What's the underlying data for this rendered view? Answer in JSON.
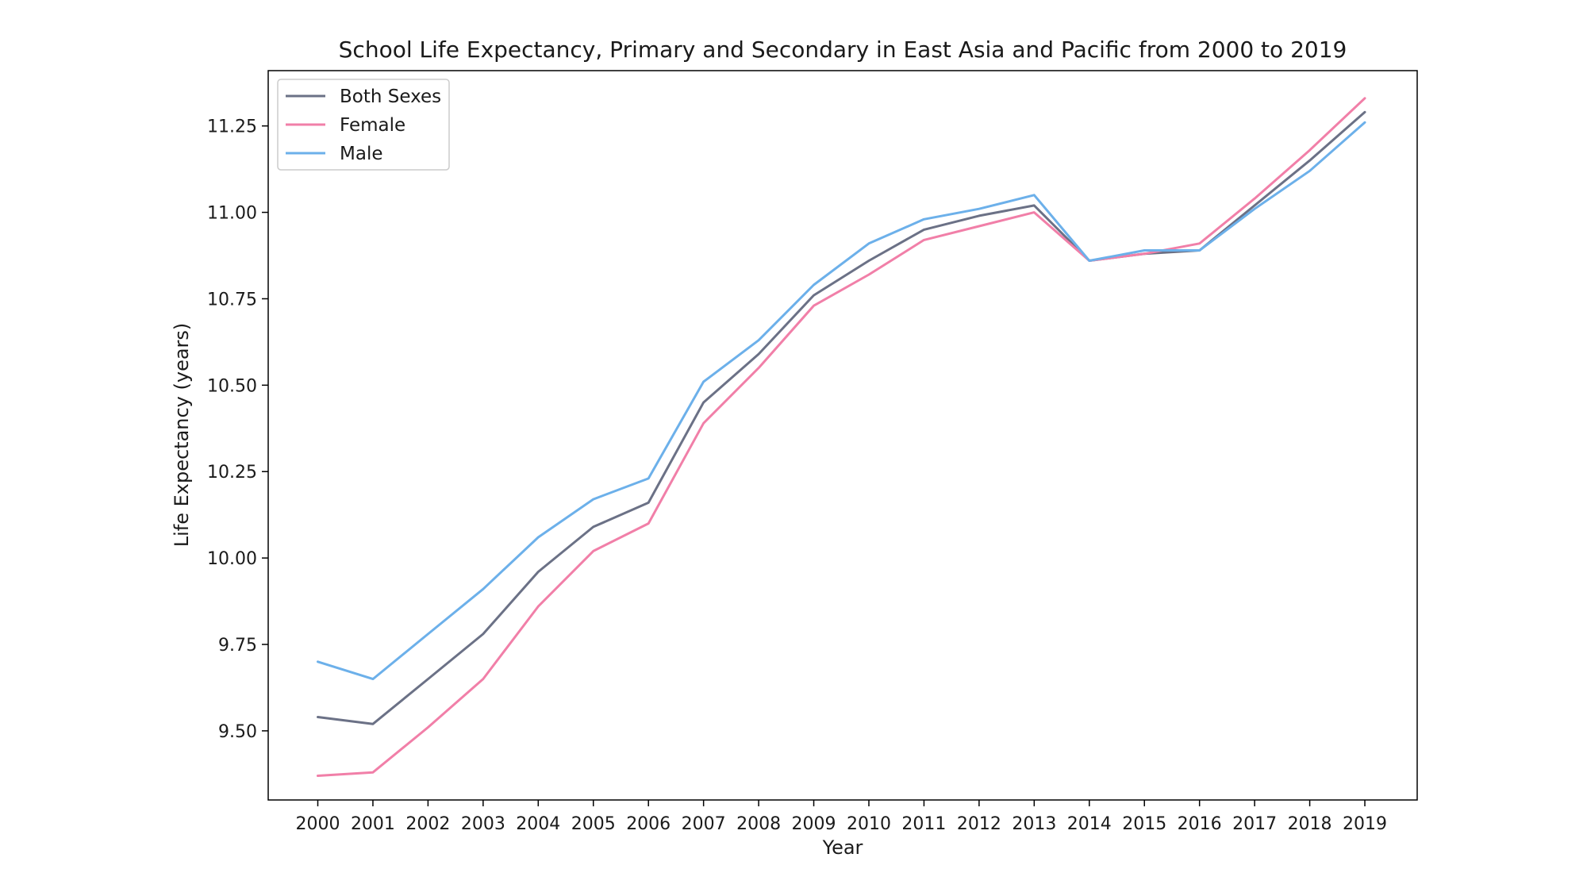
{
  "chart_data": {
    "type": "line",
    "title": "School Life Expectancy, Primary and Secondary in East Asia and Pacific from 2000 to 2019",
    "xlabel": "Year",
    "ylabel": "Life Expectancy (years)",
    "x": [
      2000,
      2001,
      2002,
      2003,
      2004,
      2005,
      2006,
      2007,
      2008,
      2009,
      2010,
      2011,
      2012,
      2013,
      2014,
      2015,
      2016,
      2017,
      2018,
      2019
    ],
    "x_tick_labels": [
      "2000",
      "2001",
      "2002",
      "2003",
      "2004",
      "2005",
      "2006",
      "2007",
      "2008",
      "2009",
      "2010",
      "2011",
      "2012",
      "2013",
      "2014",
      "2015",
      "2016",
      "2017",
      "2018",
      "2019"
    ],
    "xlim": [
      1999.1,
      2019.95
    ],
    "ylim": [
      9.3,
      11.41
    ],
    "y_ticks": [
      9.5,
      9.75,
      10.0,
      10.25,
      10.5,
      10.75,
      11.0,
      11.25
    ],
    "y_tick_labels": [
      "9.50",
      "9.75",
      "10.00",
      "10.25",
      "10.50",
      "10.75",
      "11.00",
      "11.25"
    ],
    "grid": false,
    "legend_position": "top-left",
    "series": [
      {
        "name": "Both Sexes",
        "color": "#6b7186",
        "values": [
          9.54,
          9.52,
          9.65,
          9.78,
          9.96,
          10.09,
          10.16,
          10.45,
          10.59,
          10.76,
          10.86,
          10.95,
          10.99,
          11.02,
          10.86,
          10.88,
          10.89,
          11.02,
          11.15,
          11.29
        ]
      },
      {
        "name": "Female",
        "color": "#f17fa8",
        "values": [
          9.37,
          9.38,
          9.51,
          9.65,
          9.86,
          10.02,
          10.1,
          10.39,
          10.55,
          10.73,
          10.82,
          10.92,
          10.96,
          11.0,
          10.86,
          10.88,
          10.91,
          11.04,
          11.18,
          11.33
        ]
      },
      {
        "name": "Male",
        "color": "#6cb0ea",
        "values": [
          9.7,
          9.65,
          9.78,
          9.91,
          10.06,
          10.17,
          10.23,
          10.51,
          10.63,
          10.79,
          10.91,
          10.98,
          11.01,
          11.05,
          10.86,
          10.89,
          10.89,
          11.01,
          11.12,
          11.26
        ]
      }
    ]
  }
}
